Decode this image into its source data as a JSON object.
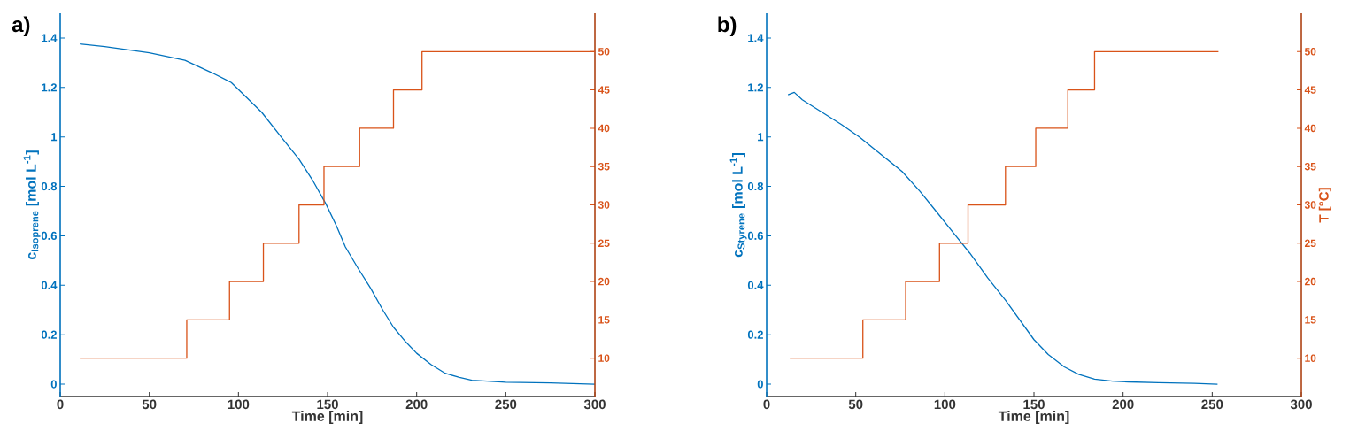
{
  "chart_data": [
    {
      "type": "line",
      "title": "a)",
      "xlabel": "Time [min]",
      "ylabel": "c$_{Isoprene}$ [mol L$^{-1}$]",
      "xlim": [
        0,
        300
      ],
      "xticks": [
        0,
        50,
        100,
        150,
        200,
        250,
        300
      ],
      "ylim": [
        -0.05,
        1.5
      ],
      "yticks": [
        0,
        0.2,
        0.4,
        0.6,
        0.8,
        1,
        1.2,
        1.4
      ],
      "y2lim": [
        5,
        55
      ],
      "y2ticks": [
        10,
        15,
        20,
        25,
        30,
        35,
        40,
        45,
        50
      ],
      "series": [
        {
          "color": "#0072bd",
          "x": [
            11,
            25,
            50,
            70,
            85,
            96,
            113,
            125,
            134,
            142,
            149,
            155,
            160,
            167,
            174,
            181,
            187,
            194,
            200,
            208,
            216,
            224,
            231,
            250,
            275,
            300
          ],
          "values": [
            1.376,
            1.365,
            1.34,
            1.31,
            1.26,
            1.22,
            1.1,
            0.99,
            0.91,
            0.82,
            0.73,
            0.64,
            0.555,
            0.47,
            0.39,
            0.3,
            0.23,
            0.17,
            0.125,
            0.08,
            0.044,
            0.027,
            0.016,
            0.008,
            0.005,
            0.0
          ]
        },
        {
          "type": "step",
          "axis": "y2",
          "color": "#d95319",
          "x": [
            11,
            71,
            95,
            114,
            134,
            148,
            168,
            187,
            203,
            300
          ],
          "values": [
            10,
            15,
            20,
            25,
            30,
            35,
            40,
            45,
            50,
            50
          ]
        }
      ]
    },
    {
      "type": "line",
      "title": "b)",
      "xlabel": "Time [min]",
      "ylabel": "c$_{Styrene}$ [mol L$^{-1}$]",
      "y2label": "T [°C]",
      "xlim": [
        0,
        300
      ],
      "xticks": [
        0,
        50,
        100,
        150,
        200,
        250,
        300
      ],
      "ylim": [
        -0.05,
        1.5
      ],
      "yticks": [
        0,
        0.2,
        0.4,
        0.6,
        0.8,
        1,
        1.2,
        1.4
      ],
      "y2lim": [
        5,
        55
      ],
      "y2ticks": [
        10,
        15,
        20,
        25,
        30,
        35,
        40,
        45,
        50
      ],
      "series": [
        {
          "color": "#0072bd",
          "x": [
            12,
            15.5,
            20,
            31,
            42,
            52,
            64,
            76,
            86,
            95,
            105,
            114,
            124,
            134,
            142,
            150,
            158,
            167,
            175,
            184,
            194,
            203,
            220,
            240,
            253
          ],
          "values": [
            1.17,
            1.18,
            1.15,
            1.1,
            1.05,
            1.0,
            0.93,
            0.86,
            0.78,
            0.7,
            0.61,
            0.53,
            0.43,
            0.34,
            0.26,
            0.18,
            0.12,
            0.07,
            0.04,
            0.02,
            0.012,
            0.009,
            0.006,
            0.003,
            0.0
          ]
        },
        {
          "type": "step",
          "axis": "y2",
          "color": "#d95319",
          "x": [
            13,
            54,
            78,
            97,
            113,
            134,
            151,
            169,
            184,
            253.5
          ],
          "values": [
            10,
            15,
            20,
            25,
            30,
            35,
            40,
            45,
            50,
            50
          ]
        }
      ]
    }
  ]
}
